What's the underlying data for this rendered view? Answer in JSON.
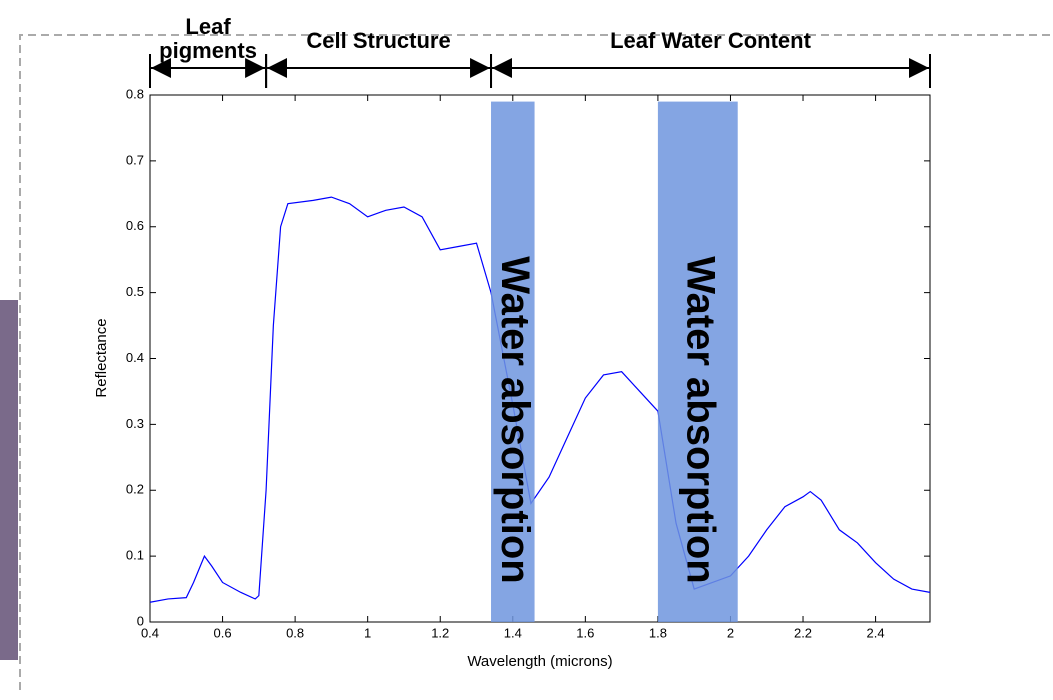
{
  "chart_data": {
    "type": "line",
    "xlabel": "Wavelength (microns)",
    "ylabel": "Reflectance",
    "xlim": [
      0.4,
      2.55
    ],
    "ylim": [
      0,
      0.8
    ],
    "xticks": [
      0.4,
      0.6,
      0.8,
      1,
      1.2,
      1.4,
      1.6,
      1.8,
      2,
      2.2,
      2.4
    ],
    "yticks": [
      0,
      0.1,
      0.2,
      0.3,
      0.4,
      0.5,
      0.6,
      0.7,
      0.8
    ],
    "x": [
      0.4,
      0.45,
      0.5,
      0.52,
      0.55,
      0.57,
      0.6,
      0.65,
      0.69,
      0.7,
      0.72,
      0.74,
      0.76,
      0.78,
      0.85,
      0.9,
      0.95,
      1.0,
      1.05,
      1.1,
      1.15,
      1.2,
      1.25,
      1.3,
      1.34,
      1.4,
      1.45,
      1.5,
      1.55,
      1.6,
      1.65,
      1.7,
      1.75,
      1.8,
      1.85,
      1.9,
      2.0,
      2.05,
      2.1,
      2.15,
      2.2,
      2.22,
      2.25,
      2.3,
      2.35,
      2.4,
      2.45,
      2.5,
      2.55
    ],
    "series": [
      {
        "color": "#0000ff",
        "values": [
          0.03,
          0.035,
          0.037,
          0.06,
          0.1,
          0.085,
          0.06,
          0.045,
          0.035,
          0.04,
          0.2,
          0.45,
          0.6,
          0.635,
          0.64,
          0.645,
          0.635,
          0.615,
          0.625,
          0.63,
          0.615,
          0.565,
          0.57,
          0.575,
          0.5,
          0.33,
          0.18,
          0.22,
          0.28,
          0.34,
          0.375,
          0.38,
          0.35,
          0.32,
          0.15,
          0.05,
          0.07,
          0.1,
          0.14,
          0.175,
          0.19,
          0.198,
          0.185,
          0.14,
          0.12,
          0.09,
          0.065,
          0.05,
          0.045
        ]
      }
    ],
    "bands": [
      {
        "label": "Water absorption",
        "start": 1.34,
        "end": 1.46,
        "top": 0.79
      },
      {
        "label": "Water absorption",
        "start": 1.8,
        "end": 2.02,
        "top": 0.79
      }
    ],
    "regions": [
      {
        "label_lines": [
          "Leaf",
          "pigments"
        ],
        "start": 0.4,
        "end": 0.72
      },
      {
        "label_lines": [
          "Cell Structure"
        ],
        "start": 0.72,
        "end": 1.34
      },
      {
        "label_lines": [
          "Leaf Water Content"
        ],
        "start": 1.34,
        "end": 2.55
      }
    ]
  }
}
